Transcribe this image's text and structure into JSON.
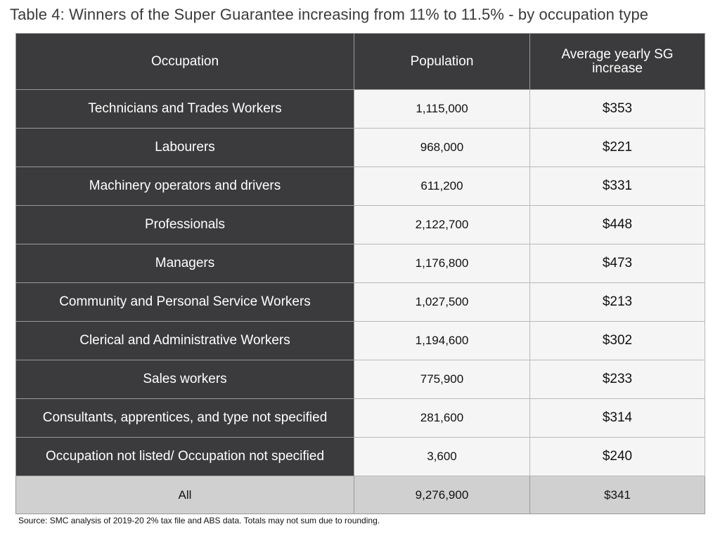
{
  "title": "Table 4: Winners of the Super Guarantee increasing from 11% to 11.5% - by occupation type",
  "table": {
    "headers": {
      "occupation": "Occupation",
      "population": "Population",
      "increase": "Average yearly SG increase"
    },
    "rows": [
      {
        "occupation": "Technicians and Trades Workers",
        "population": "1,115,000",
        "increase": "$353"
      },
      {
        "occupation": "Labourers",
        "population": "968,000",
        "increase": "$221"
      },
      {
        "occupation": "Machinery operators and drivers",
        "population": "611,200",
        "increase": "$331"
      },
      {
        "occupation": "Professionals",
        "population": "2,122,700",
        "increase": "$448"
      },
      {
        "occupation": "Managers",
        "population": "1,176,800",
        "increase": "$473"
      },
      {
        "occupation": "Community and Personal Service Workers",
        "population": "1,027,500",
        "increase": "$213"
      },
      {
        "occupation": "Clerical and Administrative Workers",
        "population": "1,194,600",
        "increase": "$302"
      },
      {
        "occupation": "Sales workers",
        "population": "775,900",
        "increase": "$233"
      },
      {
        "occupation": "Consultants, apprentices, and type not specified",
        "population": "281,600",
        "increase": "$314"
      },
      {
        "occupation": "Occupation not listed/ Occupation not specified",
        "population": "3,600",
        "increase": "$240"
      }
    ],
    "total": {
      "occupation": "All",
      "population": "9,276,900",
      "increase": "$341"
    }
  },
  "source": "Source: SMC analysis of 2019-20 2% tax file and ABS data. Totals may not sum due to rounding."
}
